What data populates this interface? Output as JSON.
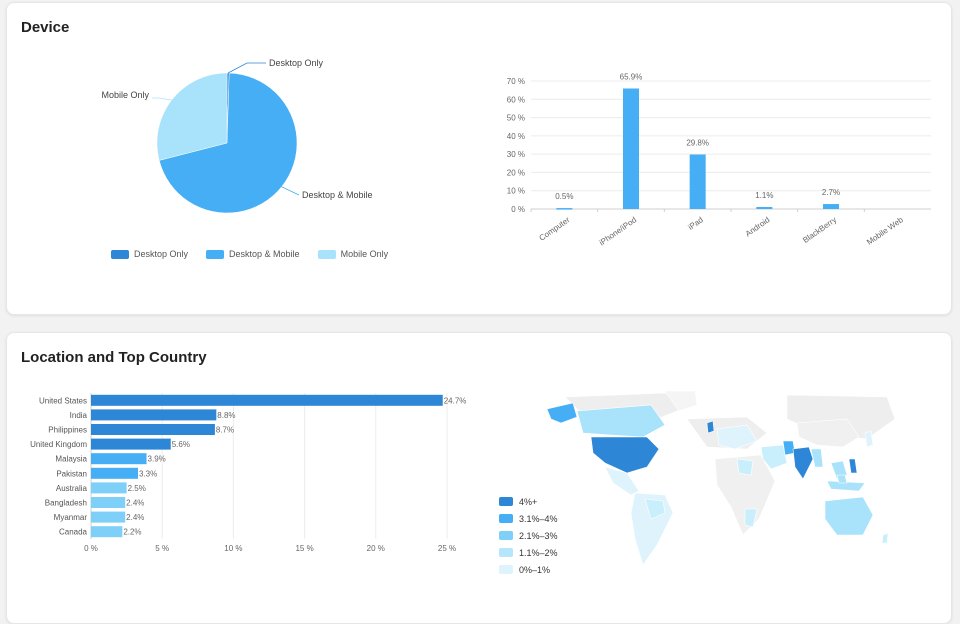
{
  "device_card": {
    "title": "Device"
  },
  "location_card": {
    "title": "Location and Top Country"
  },
  "colors": {
    "dark": "#2d86d6",
    "mid": "#45aef4",
    "light": "#a8e2fb",
    "lighter": "#c9eefc",
    "lightest": "#dff3fc"
  },
  "chart_data": [
    {
      "type": "pie",
      "categories": [
        "Desktop Only",
        "Desktop & Mobile",
        "Mobile Only"
      ],
      "values": [
        0.5,
        70.5,
        29
      ],
      "colors": [
        "#2d86d6",
        "#45aef4",
        "#a8e2fb"
      ],
      "labels": [
        "Desktop Only",
        "Desktop & Mobile",
        "Mobile Only"
      ],
      "legend": [
        "Desktop Only",
        "Desktop & Mobile",
        "Mobile Only"
      ],
      "legend_position": "bottom"
    },
    {
      "type": "bar",
      "categories": [
        "Computer",
        "iPhone/iPod",
        "iPad",
        "Android",
        "BlackBerry",
        "Mobile Web"
      ],
      "values": [
        0.5,
        65.9,
        29.8,
        1.1,
        2.7,
        null
      ],
      "data_labels": [
        "0.5%",
        "65.9%",
        "29.8%",
        "1.1%",
        "2.7%",
        ""
      ],
      "ylim": [
        0,
        70
      ],
      "yticks": [
        "0 %",
        "10 %",
        "20 %",
        "30 %",
        "40 %",
        "50 %",
        "60 %",
        "70 %"
      ],
      "color": "#45aef4",
      "grid": true
    },
    {
      "type": "bar",
      "orientation": "horizontal",
      "categories": [
        "United States",
        "India",
        "Philippines",
        "United Kingdom",
        "Malaysia",
        "Pakistan",
        "Australia",
        "Bangladesh",
        "Myanmar",
        "Canada"
      ],
      "values": [
        24.7,
        8.8,
        8.7,
        5.6,
        3.9,
        3.3,
        2.5,
        2.4,
        2.4,
        2.2
      ],
      "data_labels": [
        "24.7%",
        "8.8%",
        "8.7%",
        "5.6%",
        "3.9%",
        "3.3%",
        "2.5%",
        "2.4%",
        "2.4%",
        "2.2%"
      ],
      "colors": [
        "#2d86d6",
        "#2d86d6",
        "#2d86d6",
        "#2d86d6",
        "#45aef4",
        "#45aef4",
        "#7fd0f9",
        "#7fd0f9",
        "#7fd0f9",
        "#7fd0f9"
      ],
      "xlim": [
        0,
        25
      ],
      "xticks": [
        "0 %",
        "5 %",
        "10 %",
        "15 %",
        "20 %",
        "25 %"
      ],
      "grid": true
    }
  ],
  "map_legend": [
    {
      "label": "4%+",
      "color": "#2d86d6"
    },
    {
      "label": "3.1%–4%",
      "color": "#45aef4"
    },
    {
      "label": "2.1%–3%",
      "color": "#7fd0f9"
    },
    {
      "label": "1.1%–2%",
      "color": "#b6e6fb"
    },
    {
      "label": "0%–1%",
      "color": "#dff3fc"
    }
  ]
}
